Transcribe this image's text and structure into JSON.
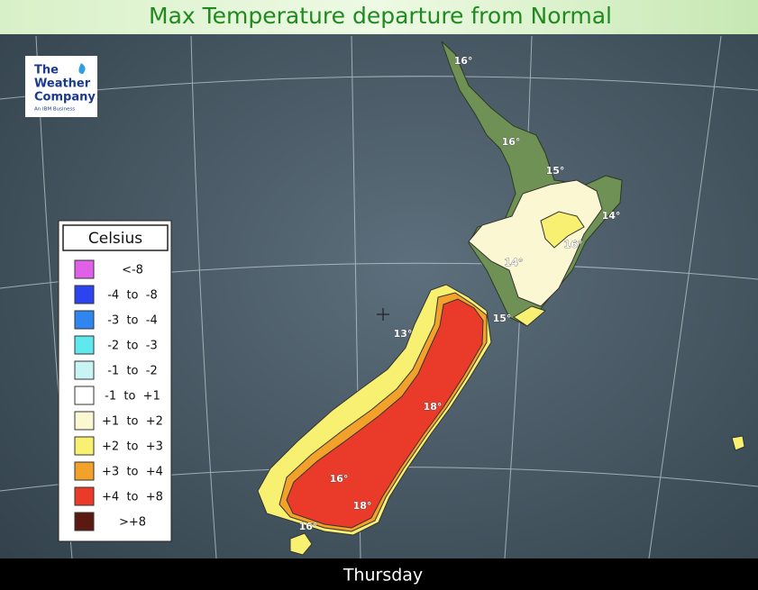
{
  "header": {
    "title": "Max Temperature departure from Normal"
  },
  "logo": {
    "lines": [
      "The",
      "Weather",
      "Company",
      "An IBM Business"
    ]
  },
  "legend": {
    "title": "Celsius",
    "items": [
      {
        "label": "<-8",
        "color": "#e060e8"
      },
      {
        "label": "-4  to  -8",
        "color": "#2c44f0"
      },
      {
        "label": "-3  to  -4",
        "color": "#2f86ee"
      },
      {
        "label": "-2  to  -3",
        "color": "#5fe8ee"
      },
      {
        "label": "-1  to  -2",
        "color": "#c8f4f4"
      },
      {
        "label": "-1  to  +1",
        "color": "#ffffff"
      },
      {
        "label": "+1  to  +2",
        "color": "#fbf7d2"
      },
      {
        "label": "+2  to  +3",
        "color": "#f7f070"
      },
      {
        "label": "+3  to  +4",
        "color": "#f2a12a"
      },
      {
        "label": "+4  to  +8",
        "color": "#ea3b2a"
      },
      {
        "label": ">+8",
        "color": "#5a1a12"
      }
    ]
  },
  "map": {
    "labels": [
      "16°",
      "16°",
      "15°",
      "14°",
      "16°",
      "14°",
      "15°",
      "13°",
      "18°",
      "16°",
      "18°",
      "16°"
    ]
  },
  "footer": {
    "day": "Thursday"
  }
}
